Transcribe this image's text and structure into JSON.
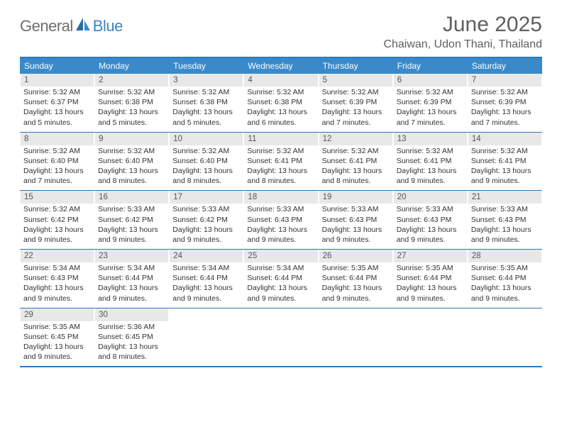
{
  "logo": {
    "text_general": "General",
    "text_blue": "Blue"
  },
  "header": {
    "month_title": "June 2025",
    "location": "Chaiwan, Udon Thani, Thailand"
  },
  "colors": {
    "header_bg": "#3a8ac9",
    "header_text": "#ffffff",
    "border": "#2f78b8",
    "daynum_bg": "#e8e8e8",
    "text": "#333333",
    "title_text": "#5f5f5f",
    "logo_gray": "#6f6f6f",
    "logo_blue": "#3a84c4"
  },
  "weekdays": [
    "Sunday",
    "Monday",
    "Tuesday",
    "Wednesday",
    "Thursday",
    "Friday",
    "Saturday"
  ],
  "weeks": [
    [
      {
        "n": "1",
        "sunrise": "5:32 AM",
        "sunset": "6:37 PM",
        "daylight": "13 hours and 5 minutes."
      },
      {
        "n": "2",
        "sunrise": "5:32 AM",
        "sunset": "6:38 PM",
        "daylight": "13 hours and 5 minutes."
      },
      {
        "n": "3",
        "sunrise": "5:32 AM",
        "sunset": "6:38 PM",
        "daylight": "13 hours and 5 minutes."
      },
      {
        "n": "4",
        "sunrise": "5:32 AM",
        "sunset": "6:38 PM",
        "daylight": "13 hours and 6 minutes."
      },
      {
        "n": "5",
        "sunrise": "5:32 AM",
        "sunset": "6:39 PM",
        "daylight": "13 hours and 7 minutes."
      },
      {
        "n": "6",
        "sunrise": "5:32 AM",
        "sunset": "6:39 PM",
        "daylight": "13 hours and 7 minutes."
      },
      {
        "n": "7",
        "sunrise": "5:32 AM",
        "sunset": "6:39 PM",
        "daylight": "13 hours and 7 minutes."
      }
    ],
    [
      {
        "n": "8",
        "sunrise": "5:32 AM",
        "sunset": "6:40 PM",
        "daylight": "13 hours and 7 minutes."
      },
      {
        "n": "9",
        "sunrise": "5:32 AM",
        "sunset": "6:40 PM",
        "daylight": "13 hours and 8 minutes."
      },
      {
        "n": "10",
        "sunrise": "5:32 AM",
        "sunset": "6:40 PM",
        "daylight": "13 hours and 8 minutes."
      },
      {
        "n": "11",
        "sunrise": "5:32 AM",
        "sunset": "6:41 PM",
        "daylight": "13 hours and 8 minutes."
      },
      {
        "n": "12",
        "sunrise": "5:32 AM",
        "sunset": "6:41 PM",
        "daylight": "13 hours and 8 minutes."
      },
      {
        "n": "13",
        "sunrise": "5:32 AM",
        "sunset": "6:41 PM",
        "daylight": "13 hours and 9 minutes."
      },
      {
        "n": "14",
        "sunrise": "5:32 AM",
        "sunset": "6:41 PM",
        "daylight": "13 hours and 9 minutes."
      }
    ],
    [
      {
        "n": "15",
        "sunrise": "5:32 AM",
        "sunset": "6:42 PM",
        "daylight": "13 hours and 9 minutes."
      },
      {
        "n": "16",
        "sunrise": "5:33 AM",
        "sunset": "6:42 PM",
        "daylight": "13 hours and 9 minutes."
      },
      {
        "n": "17",
        "sunrise": "5:33 AM",
        "sunset": "6:42 PM",
        "daylight": "13 hours and 9 minutes."
      },
      {
        "n": "18",
        "sunrise": "5:33 AM",
        "sunset": "6:43 PM",
        "daylight": "13 hours and 9 minutes."
      },
      {
        "n": "19",
        "sunrise": "5:33 AM",
        "sunset": "6:43 PM",
        "daylight": "13 hours and 9 minutes."
      },
      {
        "n": "20",
        "sunrise": "5:33 AM",
        "sunset": "6:43 PM",
        "daylight": "13 hours and 9 minutes."
      },
      {
        "n": "21",
        "sunrise": "5:33 AM",
        "sunset": "6:43 PM",
        "daylight": "13 hours and 9 minutes."
      }
    ],
    [
      {
        "n": "22",
        "sunrise": "5:34 AM",
        "sunset": "6:43 PM",
        "daylight": "13 hours and 9 minutes."
      },
      {
        "n": "23",
        "sunrise": "5:34 AM",
        "sunset": "6:44 PM",
        "daylight": "13 hours and 9 minutes."
      },
      {
        "n": "24",
        "sunrise": "5:34 AM",
        "sunset": "6:44 PM",
        "daylight": "13 hours and 9 minutes."
      },
      {
        "n": "25",
        "sunrise": "5:34 AM",
        "sunset": "6:44 PM",
        "daylight": "13 hours and 9 minutes."
      },
      {
        "n": "26",
        "sunrise": "5:35 AM",
        "sunset": "6:44 PM",
        "daylight": "13 hours and 9 minutes."
      },
      {
        "n": "27",
        "sunrise": "5:35 AM",
        "sunset": "6:44 PM",
        "daylight": "13 hours and 9 minutes."
      },
      {
        "n": "28",
        "sunrise": "5:35 AM",
        "sunset": "6:44 PM",
        "daylight": "13 hours and 9 minutes."
      }
    ],
    [
      {
        "n": "29",
        "sunrise": "5:35 AM",
        "sunset": "6:45 PM",
        "daylight": "13 hours and 9 minutes."
      },
      {
        "n": "30",
        "sunrise": "5:36 AM",
        "sunset": "6:45 PM",
        "daylight": "13 hours and 8 minutes."
      },
      null,
      null,
      null,
      null,
      null
    ]
  ],
  "labels": {
    "sunrise": "Sunrise:",
    "sunset": "Sunset:",
    "daylight": "Daylight:"
  }
}
